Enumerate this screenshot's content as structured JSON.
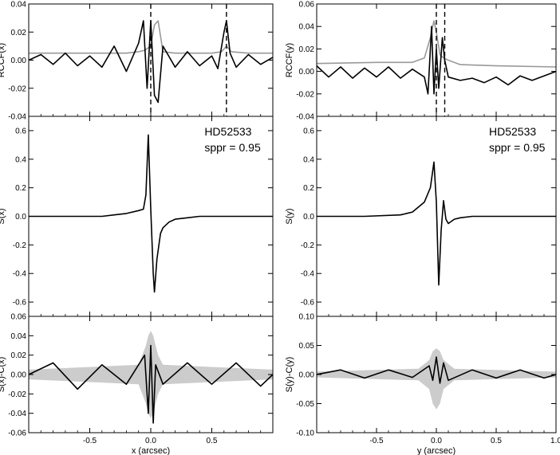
{
  "chart_data": [
    {
      "type": "line",
      "title": "",
      "xlabel": "",
      "ylabel": "RCCF(x)",
      "xlim": [
        -1.0,
        1.0
      ],
      "ylim": [
        -0.04,
        0.04
      ],
      "yticks": [
        "0.04",
        "0.02",
        "0.00",
        "-0.02",
        "-0.04"
      ],
      "vlines": [
        0.0,
        0.62
      ],
      "series": [
        {
          "color": "#999999",
          "x": [
            -1.0,
            -0.2,
            -0.1,
            -0.05,
            0.0,
            0.03,
            0.06,
            0.1,
            0.2,
            0.5,
            0.58,
            0.62,
            0.66,
            0.8,
            1.0
          ],
          "values": [
            0.005,
            0.005,
            0.006,
            0.007,
            0.01,
            0.025,
            0.028,
            0.006,
            0.005,
            0.005,
            0.006,
            0.01,
            0.006,
            0.005,
            0.005
          ]
        },
        {
          "color": "#000000",
          "x": [
            -1.0,
            -0.9,
            -0.8,
            -0.7,
            -0.6,
            -0.5,
            -0.4,
            -0.3,
            -0.2,
            -0.1,
            -0.06,
            -0.03,
            0.0,
            0.03,
            0.06,
            0.1,
            0.2,
            0.3,
            0.4,
            0.5,
            0.55,
            0.6,
            0.62,
            0.65,
            0.7,
            0.8,
            0.9,
            1.0
          ],
          "values": [
            0.0,
            0.004,
            -0.003,
            0.005,
            -0.004,
            0.003,
            -0.005,
            0.01,
            -0.008,
            0.012,
            0.028,
            -0.02,
            0.028,
            -0.025,
            -0.03,
            0.01,
            -0.005,
            0.006,
            -0.004,
            0.003,
            -0.006,
            0.02,
            0.028,
            0.005,
            -0.005,
            0.004,
            -0.003,
            0.002
          ]
        }
      ]
    },
    {
      "type": "line",
      "title": "",
      "xlabel": "",
      "ylabel": "S(x)",
      "xlim": [
        -1.0,
        1.0
      ],
      "ylim": [
        -0.7,
        0.7
      ],
      "yticks": [
        "0.6",
        "0.4",
        "0.2",
        "0.0",
        "-0.2",
        "-0.4",
        "-0.6"
      ],
      "annotations": [
        "HD52533",
        "sppr = 0.95"
      ],
      "series": [
        {
          "color": "#000000",
          "x": [
            -1.0,
            -0.8,
            -0.6,
            -0.4,
            -0.3,
            -0.2,
            -0.1,
            -0.06,
            -0.04,
            -0.02,
            0.0,
            0.02,
            0.03,
            0.05,
            0.08,
            0.1,
            0.15,
            0.2,
            0.3,
            0.4,
            0.6,
            0.8,
            1.0
          ],
          "values": [
            0.0,
            0.0,
            0.0,
            0.0,
            0.01,
            0.02,
            0.04,
            0.05,
            0.15,
            0.57,
            0.05,
            -0.4,
            -0.53,
            -0.3,
            -0.12,
            -0.08,
            -0.04,
            -0.02,
            -0.01,
            0.0,
            0.0,
            0.0,
            0.0
          ]
        }
      ]
    },
    {
      "type": "line",
      "title": "",
      "xlabel": "x (arcsec)",
      "ylabel": "S(x)-C(x)",
      "xlim": [
        -1.0,
        1.0
      ],
      "ylim": [
        -0.06,
        0.06
      ],
      "xticks": [
        "-0.5",
        "0.0",
        "0.5"
      ],
      "yticks": [
        "0.06",
        "0.04",
        "0.02",
        "0.00",
        "-0.02",
        "-0.04",
        "-0.06"
      ],
      "series": [
        {
          "color": "#cccccc",
          "kind": "band",
          "x": [
            -1.0,
            -0.1,
            -0.04,
            -0.02,
            0.0,
            0.02,
            0.04,
            0.06,
            0.1,
            1.0
          ],
          "upper": [
            0.005,
            0.01,
            0.03,
            0.04,
            0.045,
            0.04,
            0.03,
            0.02,
            0.01,
            0.005
          ],
          "lower": [
            -0.005,
            -0.01,
            -0.03,
            -0.04,
            -0.045,
            -0.04,
            -0.03,
            -0.02,
            -0.01,
            -0.005
          ]
        },
        {
          "color": "#000000",
          "x": [
            -1.0,
            -0.8,
            -0.6,
            -0.4,
            -0.2,
            -0.05,
            -0.02,
            0.0,
            0.02,
            0.04,
            0.1,
            0.3,
            0.5,
            0.7,
            0.9,
            1.0
          ],
          "values": [
            0.0,
            0.012,
            -0.015,
            0.01,
            -0.01,
            0.02,
            -0.04,
            0.03,
            -0.05,
            0.01,
            -0.01,
            0.012,
            -0.01,
            0.012,
            -0.012,
            0.0
          ]
        }
      ]
    },
    {
      "type": "line",
      "title": "",
      "xlabel": "",
      "ylabel": "RCCF(y)",
      "xlim": [
        -1.0,
        1.0
      ],
      "ylim": [
        -0.04,
        0.06
      ],
      "yticks": [
        "0.06",
        "0.04",
        "0.02",
        "0.00",
        "-0.02",
        "-0.04"
      ],
      "vlines": [
        0.0,
        0.07
      ],
      "series": [
        {
          "color": "#999999",
          "x": [
            -1.0,
            -0.5,
            -0.2,
            -0.1,
            -0.05,
            -0.02,
            0.0,
            0.03,
            0.06,
            0.1,
            0.2,
            0.5,
            1.0
          ],
          "values": [
            0.007,
            0.008,
            0.008,
            0.012,
            0.03,
            0.045,
            0.035,
            0.015,
            0.012,
            0.01,
            0.006,
            0.005,
            0.004
          ]
        },
        {
          "color": "#000000",
          "x": [
            -1.0,
            -0.9,
            -0.8,
            -0.7,
            -0.6,
            -0.5,
            -0.4,
            -0.3,
            -0.2,
            -0.1,
            -0.07,
            -0.04,
            -0.02,
            0.0,
            0.02,
            0.05,
            0.07,
            0.1,
            0.2,
            0.3,
            0.4,
            0.5,
            0.6,
            0.7,
            0.8,
            0.9,
            1.0
          ],
          "values": [
            0.005,
            -0.005,
            0.004,
            -0.006,
            0.003,
            -0.005,
            0.004,
            -0.006,
            0.002,
            -0.005,
            -0.02,
            0.04,
            -0.02,
            0.02,
            -0.015,
            0.03,
            0.01,
            -0.005,
            -0.008,
            -0.006,
            -0.01,
            -0.005,
            -0.012,
            -0.004,
            -0.008,
            -0.004,
            0.0
          ]
        }
      ]
    },
    {
      "type": "line",
      "title": "",
      "xlabel": "",
      "ylabel": "S(y)",
      "xlim": [
        -1.0,
        1.0
      ],
      "ylim": [
        -0.7,
        0.7
      ],
      "yticks": [
        "0.6",
        "0.4",
        "0.2",
        "0.0",
        "-0.2",
        "-0.4",
        "-0.6"
      ],
      "annotations": [
        "HD52533",
        "sppr = 0.95"
      ],
      "series": [
        {
          "color": "#000000",
          "x": [
            -1.0,
            -0.6,
            -0.3,
            -0.2,
            -0.1,
            -0.05,
            -0.02,
            0.0,
            0.02,
            0.04,
            0.06,
            0.08,
            0.1,
            0.15,
            0.2,
            0.3,
            0.5,
            1.0
          ],
          "values": [
            0.0,
            0.0,
            0.01,
            0.03,
            0.1,
            0.2,
            0.38,
            0.1,
            -0.48,
            -0.1,
            0.11,
            -0.02,
            -0.05,
            -0.02,
            -0.01,
            0.0,
            0.0,
            0.0
          ]
        }
      ]
    },
    {
      "type": "line",
      "title": "",
      "xlabel": "y (arcsec)",
      "ylabel": "S(y)-C(y)",
      "xlim": [
        -1.0,
        1.0
      ],
      "ylim": [
        -0.1,
        0.1
      ],
      "xticks": [
        "-0.5",
        "0.0",
        "0.5",
        "1.0"
      ],
      "yticks": [
        "0.10",
        "0.05",
        "0.00",
        "-0.05",
        "-0.10"
      ],
      "series": [
        {
          "color": "#cccccc",
          "kind": "band",
          "x": [
            -1.0,
            -0.15,
            -0.06,
            -0.03,
            0.0,
            0.03,
            0.06,
            0.15,
            1.0
          ],
          "upper": [
            0.005,
            0.01,
            0.025,
            0.04,
            0.045,
            0.04,
            0.025,
            0.01,
            0.005
          ],
          "lower": [
            -0.005,
            -0.01,
            -0.025,
            -0.05,
            -0.06,
            -0.05,
            -0.025,
            -0.01,
            -0.005
          ]
        },
        {
          "color": "#000000",
          "x": [
            -1.0,
            -0.8,
            -0.6,
            -0.4,
            -0.2,
            -0.06,
            -0.03,
            0.0,
            0.03,
            0.06,
            0.1,
            0.3,
            0.5,
            0.7,
            0.9,
            1.0
          ],
          "values": [
            0.0,
            0.008,
            -0.006,
            0.008,
            -0.005,
            0.015,
            -0.01,
            0.03,
            -0.015,
            0.02,
            -0.01,
            0.008,
            -0.006,
            0.008,
            -0.006,
            0.0
          ]
        }
      ]
    }
  ]
}
